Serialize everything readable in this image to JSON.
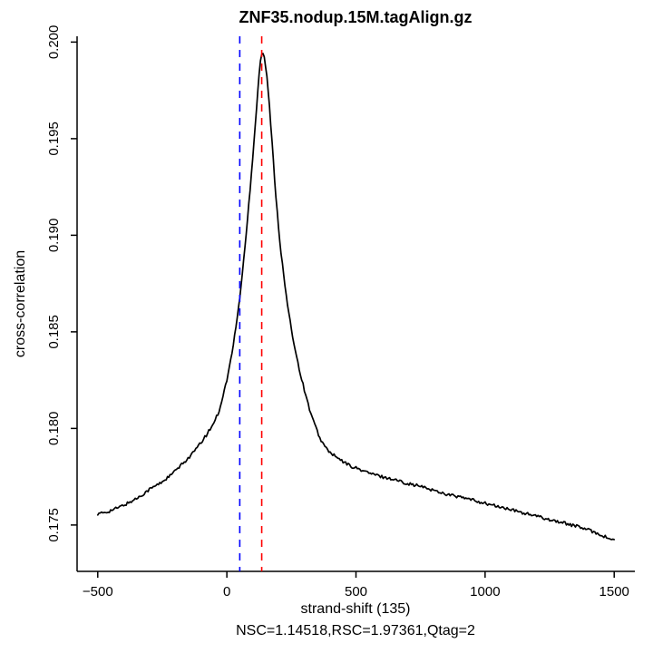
{
  "chart_data": {
    "type": "line",
    "title": "ZNF35.nodup.15M.tagAlign.gz",
    "xlabel": "strand-shift (135)",
    "ylabel": "cross-correlation",
    "subtitle": "NSC=1.14518,RSC=1.97361,Qtag=2",
    "xlim": [
      -580,
      1580
    ],
    "ylim": [
      0.1726,
      0.2003
    ],
    "grid": false,
    "legend": null,
    "x_ticks": {
      "values": [
        -500,
        0,
        500,
        1000,
        1500
      ],
      "labels": [
        "−500",
        "0",
        "500",
        "1000",
        "1500"
      ]
    },
    "y_ticks": {
      "values": [
        0.175,
        0.18,
        0.185,
        0.19,
        0.195,
        0.2
      ],
      "labels": [
        "0.175",
        "0.180",
        "0.185",
        "0.190",
        "0.195",
        "0.200"
      ]
    },
    "stats": {
      "NSC": 1.14518,
      "RSC": 1.97361,
      "Qtag": 2,
      "strand_shift_peak": 135
    },
    "vlines": [
      {
        "x": 50,
        "color": "#0000FF",
        "style": "dashed",
        "name": "phantom-peak-read-length"
      },
      {
        "x": 135,
        "color": "#FF0000",
        "style": "dashed",
        "name": "fragment-length"
      }
    ],
    "series": [
      {
        "name": "cross-correlation",
        "color": "#000000",
        "points": [
          [
            -500,
            0.17555
          ],
          [
            -460,
            0.1757
          ],
          [
            -420,
            0.1759
          ],
          [
            -380,
            0.17615
          ],
          [
            -340,
            0.17645
          ],
          [
            -300,
            0.17685
          ],
          [
            -260,
            0.17715
          ],
          [
            -220,
            0.17755
          ],
          [
            -180,
            0.17805
          ],
          [
            -140,
            0.1786
          ],
          [
            -100,
            0.17925
          ],
          [
            -60,
            0.18005
          ],
          [
            -30,
            0.1809
          ],
          [
            0,
            0.1825
          ],
          [
            20,
            0.1839
          ],
          [
            40,
            0.1857
          ],
          [
            50,
            0.1868
          ],
          [
            60,
            0.188
          ],
          [
            80,
            0.1908
          ],
          [
            100,
            0.194
          ],
          [
            115,
            0.1966
          ],
          [
            125,
            0.1984
          ],
          [
            132,
            0.1993
          ],
          [
            138,
            0.1995
          ],
          [
            145,
            0.1992
          ],
          [
            152,
            0.1986
          ],
          [
            162,
            0.1972
          ],
          [
            175,
            0.1948
          ],
          [
            190,
            0.192
          ],
          [
            205,
            0.1897
          ],
          [
            220,
            0.1879
          ],
          [
            240,
            0.1859
          ],
          [
            260,
            0.1844
          ],
          [
            280,
            0.1831
          ],
          [
            300,
            0.182
          ],
          [
            320,
            0.181
          ],
          [
            340,
            0.1802
          ],
          [
            360,
            0.1795
          ],
          [
            380,
            0.17905
          ],
          [
            400,
            0.17875
          ],
          [
            440,
            0.17835
          ],
          [
            480,
            0.17805
          ],
          [
            520,
            0.17785
          ],
          [
            560,
            0.17765
          ],
          [
            600,
            0.1775
          ],
          [
            650,
            0.17735
          ],
          [
            700,
            0.17715
          ],
          [
            750,
            0.177
          ],
          [
            800,
            0.1768
          ],
          [
            850,
            0.1766
          ],
          [
            900,
            0.17645
          ],
          [
            950,
            0.1763
          ],
          [
            1000,
            0.17612
          ],
          [
            1060,
            0.17592
          ],
          [
            1120,
            0.17572
          ],
          [
            1180,
            0.17552
          ],
          [
            1240,
            0.17532
          ],
          [
            1300,
            0.17512
          ],
          [
            1360,
            0.17492
          ],
          [
            1420,
            0.17465
          ],
          [
            1460,
            0.17442
          ],
          [
            1500,
            0.1742
          ]
        ]
      }
    ]
  }
}
